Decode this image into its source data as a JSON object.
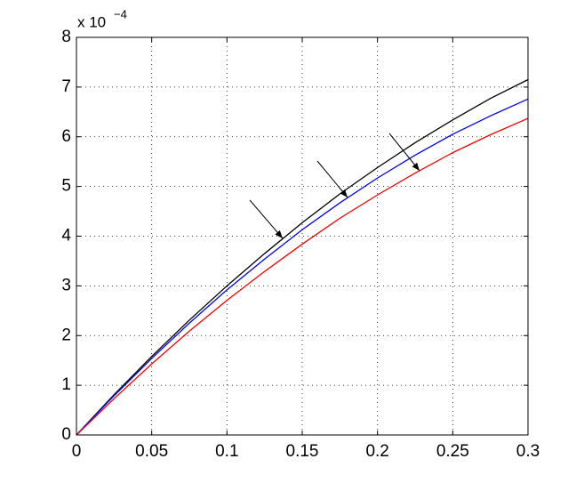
{
  "chart_data": {
    "type": "line",
    "y_multiplier": "x 10",
    "y_multiplier_exponent": "−4",
    "x": [
      0,
      0.025,
      0.05,
      0.075,
      0.1,
      0.125,
      0.15,
      0.175,
      0.2,
      0.225,
      0.25,
      0.275,
      0.3
    ],
    "series": [
      {
        "color": "#000000",
        "values": [
          0,
          0.81,
          1.58,
          2.31,
          3.0,
          3.65,
          4.27,
          4.85,
          5.38,
          5.88,
          6.34,
          6.77,
          7.15
        ]
      },
      {
        "color": "#0000ff",
        "values": [
          0,
          0.79,
          1.54,
          2.25,
          2.92,
          3.54,
          4.13,
          4.67,
          5.17,
          5.63,
          6.05,
          6.42,
          6.76
        ]
      },
      {
        "color": "#ff0000",
        "values": [
          0,
          0.73,
          1.43,
          2.09,
          2.71,
          3.29,
          3.84,
          4.36,
          4.83,
          5.27,
          5.68,
          6.04,
          6.37
        ]
      }
    ],
    "xlim": [
      0,
      0.3
    ],
    "xticks": [
      0,
      0.05,
      0.1,
      0.15,
      0.2,
      0.25,
      0.3
    ],
    "ylim": [
      0,
      8
    ],
    "yticks": [
      0,
      1,
      2,
      3,
      4,
      5,
      6,
      7,
      8
    ],
    "grid": true
  }
}
